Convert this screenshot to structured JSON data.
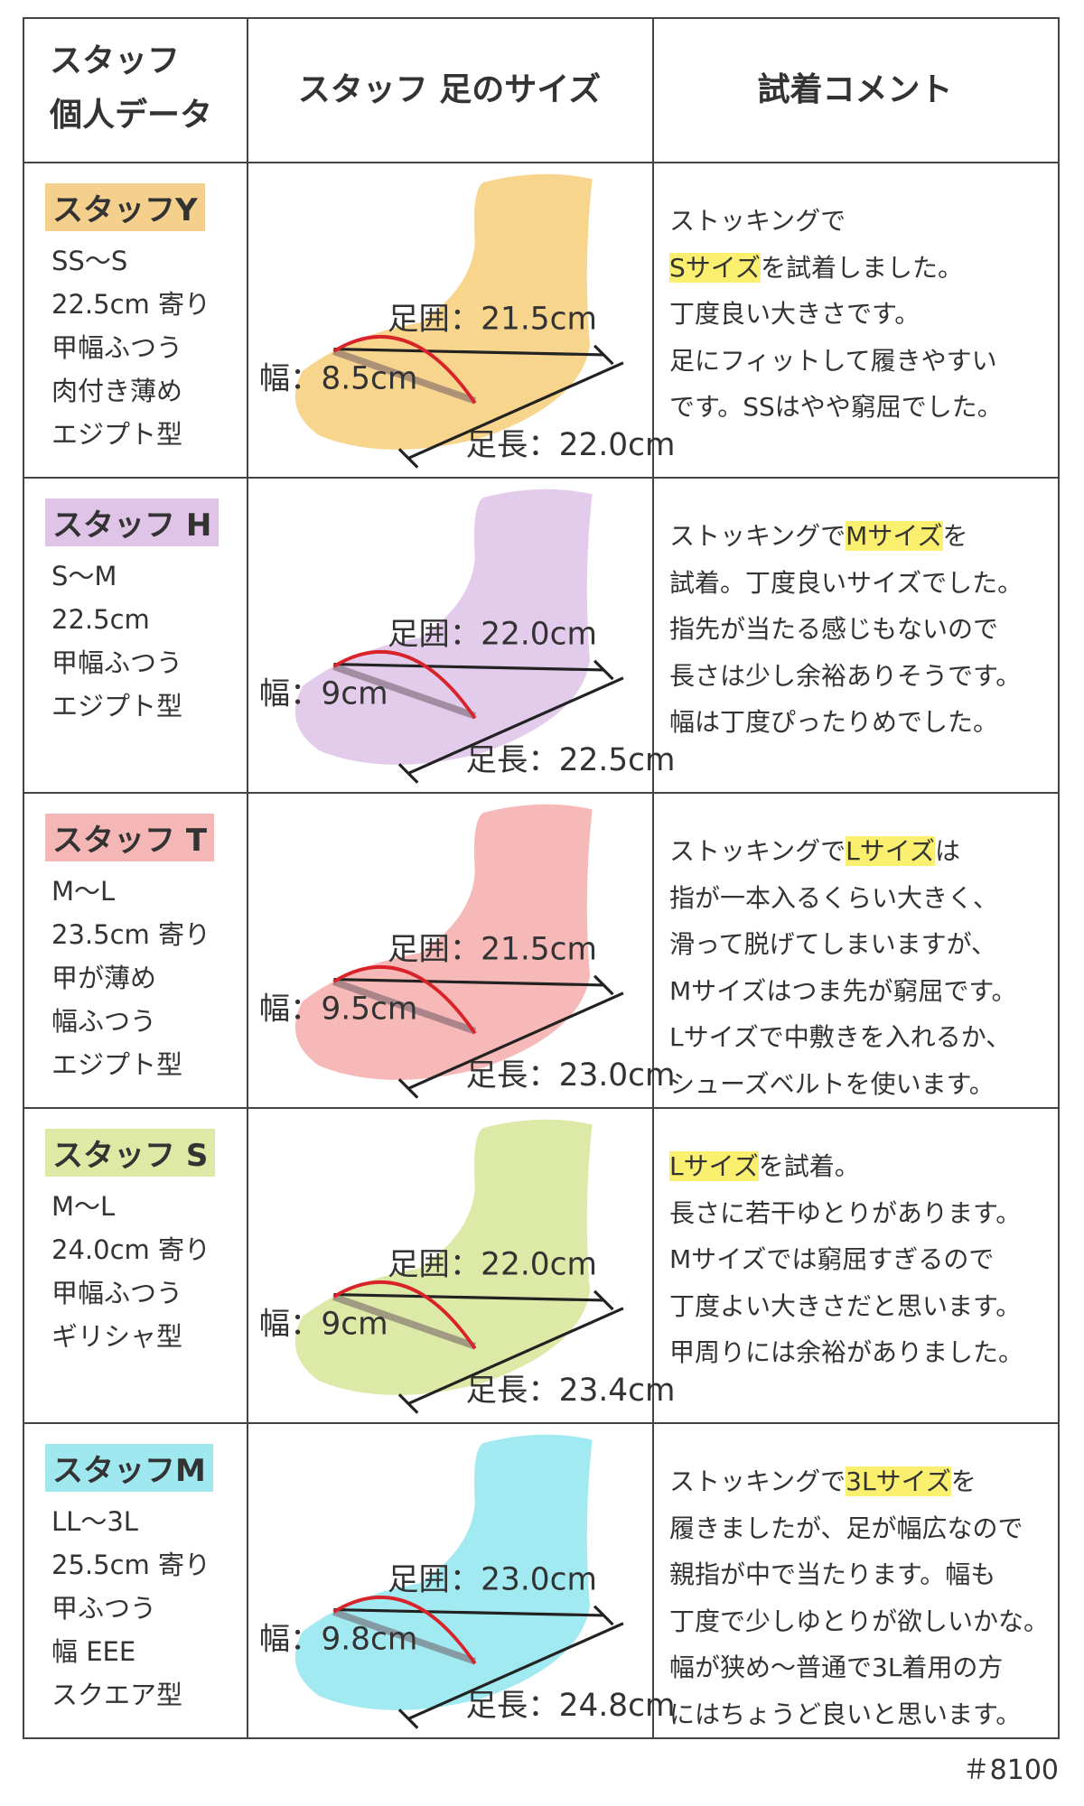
{
  "header": {
    "col1": [
      "スタッフ",
      "個人データ"
    ],
    "col2": "スタッフ 足のサイズ",
    "col3": "試着コメント"
  },
  "rows": [
    {
      "name": "スタッフY",
      "name_color": "#f5d08d",
      "foot_color": "#f8d58c",
      "details": [
        "SS〜S",
        "22.5cm 寄り",
        "甲幅ふつう",
        "肉付き薄め",
        "エジプト型"
      ],
      "girth": "足囲：21.5cm",
      "width": "幅：8.5cm",
      "length": "足長：22.0cm",
      "comment": [
        [
          "ストッキングで"
        ],
        [
          {
            "text": "Sサイズ",
            "highlight": true
          },
          "を試着しました。"
        ],
        [
          "丁度良い大きさです。"
        ],
        [
          "足にフィットして履きやすい"
        ],
        [
          "です。SSはやや窮屈でした。"
        ]
      ]
    },
    {
      "name": "スタッフ H",
      "name_color": "#dfc4e7",
      "foot_color": "#e3cbeb",
      "details": [
        "S〜M",
        "22.5cm",
        "甲幅ふつう",
        "エジプト型"
      ],
      "girth": "足囲：22.0cm",
      "width": "幅：9cm",
      "length": "足長：22.5cm",
      "comment": [
        [
          "ストッキングで",
          {
            "text": "Mサイズ",
            "highlight": true
          },
          "を"
        ],
        [
          "試着。丁度良いサイズでした。"
        ],
        [
          "指先が当たる感じもないので"
        ],
        [
          "長さは少し余裕ありそうです。"
        ],
        [
          "幅は丁度ぴったりめでした。"
        ]
      ]
    },
    {
      "name": "スタッフ T",
      "name_color": "#f4b7b5",
      "foot_color": "#f6b9b7",
      "details": [
        "M〜L",
        "23.5cm 寄り",
        "甲が薄め",
        "幅ふつう",
        "エジプト型"
      ],
      "girth": "足囲：21.5cm",
      "width": "幅：9.5cm",
      "length": "足長：23.0cm",
      "comment": [
        [
          "ストッキングで",
          {
            "text": "Lサイズ",
            "highlight": true
          },
          "は"
        ],
        [
          "指が一本入るくらい大きく、"
        ],
        [
          "滑って脱げてしまいますが、"
        ],
        [
          "Mサイズはつま先が窮屈です。"
        ],
        [
          "Lサイズで中敷きを入れるか、"
        ],
        [
          "シューズベルトを使います。"
        ]
      ]
    },
    {
      "name": "スタッフ S",
      "name_color": "#dde9a5",
      "foot_color": "#dde9a6",
      "details": [
        "M〜L",
        "24.0cm 寄り",
        "甲幅ふつう",
        "ギリシャ型"
      ],
      "girth": "足囲：22.0cm",
      "width": "幅：9cm",
      "length": "足長：23.4cm",
      "comment": [
        [
          {
            "text": "Lサイズ",
            "highlight": true
          },
          "を試着。"
        ],
        [
          "長さに若干ゆとりがあります。"
        ],
        [
          "Mサイズでは窮屈すぎるので"
        ],
        [
          "丁度よい大きさだと思います。"
        ],
        [
          "甲周りには余裕がありました。"
        ]
      ]
    },
    {
      "name": "スタッフM",
      "name_color": "#9fe8f0",
      "foot_color": "#a2eaf2",
      "details": [
        "LL〜3L",
        "25.5cm 寄り",
        "甲ふつう",
        "幅 EEE",
        "スクエア型"
      ],
      "girth": "足囲：23.0cm",
      "width": "幅：9.8cm",
      "length": "足長：24.8cm",
      "comment": [
        [
          "ストッキングで",
          {
            "text": "3Lサイズ",
            "highlight": true
          },
          "を"
        ],
        [
          "履きましたが、足が幅広なので"
        ],
        [
          "親指が中で当たります。幅も"
        ],
        [
          "丁度で少しゆとりが欲しいかな。"
        ],
        [
          "幅が狭め〜普通で3L着用の方"
        ],
        [
          "にはちょうど良いと思います。"
        ]
      ]
    }
  ],
  "footer": "＃8100"
}
